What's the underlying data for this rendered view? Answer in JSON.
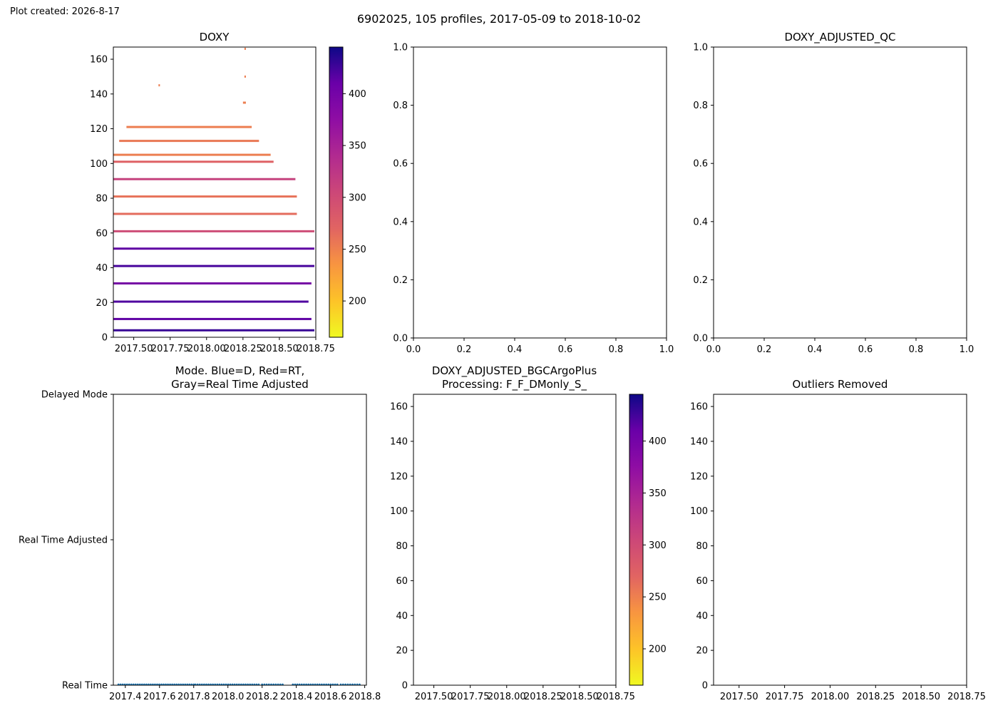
{
  "created_label": "Plot created: 2026-8-17",
  "suptitle": "6902025, 105 profiles, 2017-05-09 to 2018-10-02",
  "colors": {
    "axis": "#000000",
    "scatter": "#1f77b4",
    "colormap": "plasma"
  },
  "chart_data": [
    {
      "id": "doxy",
      "type": "heatmap",
      "title": "DOXY",
      "xlim": [
        2017.36,
        2018.75
      ],
      "ylim": [
        167,
        0
      ],
      "xticks": [
        2017.5,
        2017.75,
        2018.0,
        2018.25,
        2018.5,
        2018.75
      ],
      "xtick_labels": [
        "2017.50",
        "2017.75",
        "2018.00",
        "2018.25",
        "2018.50",
        "2018.75"
      ],
      "yticks": [
        0,
        20,
        40,
        60,
        80,
        100,
        120,
        140,
        160
      ],
      "ytick_labels": [
        "0",
        "20",
        "40",
        "60",
        "80",
        "100",
        "120",
        "140",
        "160"
      ],
      "colorbar": {
        "cmap": "plasma",
        "vmin": 165,
        "vmax": 445,
        "ticks": [
          200,
          250,
          300,
          350,
          400
        ],
        "tick_labels": [
          "200",
          "250",
          "300",
          "350",
          "400"
        ]
      },
      "cells": [
        {
          "x": 2017.36,
          "x2": 2018.74,
          "depth": 4,
          "value": 420
        },
        {
          "x": 2017.36,
          "x2": 2018.72,
          "depth": 10.5,
          "value": 395
        },
        {
          "x": 2017.36,
          "x2": 2018.7,
          "depth": 20.5,
          "value": 405
        },
        {
          "x": 2017.36,
          "x2": 2018.72,
          "depth": 31,
          "value": 380
        },
        {
          "x": 2017.36,
          "x2": 2018.74,
          "depth": 41,
          "value": 410
        },
        {
          "x": 2017.36,
          "x2": 2018.74,
          "depth": 51,
          "value": 395
        },
        {
          "x": 2017.36,
          "x2": 2018.74,
          "depth": 61,
          "value": 300
        },
        {
          "x": 2017.36,
          "x2": 2018.62,
          "depth": 71,
          "value": 270
        },
        {
          "x": 2017.36,
          "x2": 2018.62,
          "depth": 81,
          "value": 265
        },
        {
          "x": 2017.36,
          "x2": 2018.61,
          "depth": 91,
          "value": 310
        },
        {
          "x": 2017.36,
          "x2": 2018.46,
          "depth": 101,
          "value": 280
        },
        {
          "x": 2017.36,
          "x2": 2018.44,
          "depth": 105,
          "value": 255
        },
        {
          "x": 2017.4,
          "x2": 2018.36,
          "depth": 113,
          "value": 260
        },
        {
          "x": 2017.45,
          "x2": 2018.31,
          "depth": 121,
          "value": 255
        },
        {
          "x": 2018.25,
          "x2": 2018.27,
          "depth": 135,
          "value": 255
        },
        {
          "x": 2017.67,
          "x2": 2017.68,
          "depth": 145,
          "value": 255
        },
        {
          "x": 2018.26,
          "x2": 2018.27,
          "depth": 150,
          "value": 255
        },
        {
          "x": 2018.26,
          "x2": 2018.27,
          "depth": 166,
          "value": 255
        }
      ]
    },
    {
      "id": "doxy-adjusted",
      "type": "scatter",
      "title": "",
      "xlim": [
        0,
        1
      ],
      "ylim": [
        0,
        1
      ],
      "ticks": [
        0.0,
        0.2,
        0.4,
        0.6,
        0.8,
        1.0
      ],
      "tick_labels": [
        "0.0",
        "0.2",
        "0.4",
        "0.6",
        "0.8",
        "1.0"
      ]
    },
    {
      "id": "doxy-adjusted-qc",
      "type": "scatter",
      "title": "DOXY_ADJUSTED_QC",
      "xlim": [
        0,
        1
      ],
      "ylim": [
        0,
        1
      ],
      "ticks": [
        0.0,
        0.2,
        0.4,
        0.6,
        0.8,
        1.0
      ],
      "tick_labels": [
        "0.0",
        "0.2",
        "0.4",
        "0.6",
        "0.8",
        "1.0"
      ]
    },
    {
      "id": "mode",
      "type": "scatter",
      "title_lines": [
        "Mode. Blue=D, Red=RT,",
        "Gray=Real Time Adjusted"
      ],
      "xlim": [
        2017.33,
        2018.81
      ],
      "ylim": [
        0,
        2
      ],
      "xticks": [
        2017.4,
        2017.6,
        2017.8,
        2018.0,
        2018.2,
        2018.4,
        2018.6,
        2018.8
      ],
      "xtick_labels": [
        "2017.4",
        "2017.6",
        "2017.8",
        "2018.0",
        "2018.2",
        "2018.4",
        "2018.6",
        "2018.8"
      ],
      "yticks": [
        0,
        1,
        2
      ],
      "ytick_labels": [
        "Real Time",
        "Real Time Adjusted",
        "Delayed Mode"
      ],
      "series": [
        {
          "x_ranges": [
            [
              2017.36,
              2017.8
            ],
            [
              2017.81,
              2018.18
            ],
            [
              2018.2,
              2018.32
            ],
            [
              2018.38,
              2018.64
            ],
            [
              2018.66,
              2018.77
            ]
          ],
          "y": 0,
          "point_count": 105
        }
      ]
    },
    {
      "id": "bgc-argo-plus",
      "type": "heatmap",
      "title_lines": [
        "DOXY_ADJUSTED_BGCArgoPlus",
        "Processing: F_F_DMonly_S_"
      ],
      "xlim": [
        2017.36,
        2018.75
      ],
      "ylim": [
        167,
        0
      ],
      "xticks": [
        2017.5,
        2017.75,
        2018.0,
        2018.25,
        2018.5,
        2018.75
      ],
      "xtick_labels": [
        "2017.50",
        "2017.75",
        "2018.00",
        "2018.25",
        "2018.50",
        "2018.75"
      ],
      "yticks": [
        0,
        20,
        40,
        60,
        80,
        100,
        120,
        140,
        160
      ],
      "ytick_labels": [
        "0",
        "20",
        "40",
        "60",
        "80",
        "100",
        "120",
        "140",
        "160"
      ],
      "colorbar": {
        "cmap": "plasma",
        "vmin": 165,
        "vmax": 445,
        "ticks": [
          200,
          250,
          300,
          350,
          400
        ],
        "tick_labels": [
          "200",
          "250",
          "300",
          "350",
          "400"
        ]
      },
      "cells": []
    },
    {
      "id": "outliers",
      "type": "heatmap",
      "title": "Outliers Removed",
      "xlim": [
        2017.36,
        2018.75
      ],
      "ylim": [
        167,
        0
      ],
      "xticks": [
        2017.5,
        2017.75,
        2018.0,
        2018.25,
        2018.5,
        2018.75
      ],
      "xtick_labels": [
        "2017.50",
        "2017.75",
        "2018.00",
        "2018.25",
        "2018.50",
        "2018.75"
      ],
      "yticks": [
        0,
        20,
        40,
        60,
        80,
        100,
        120,
        140,
        160
      ],
      "ytick_labels": [
        "0",
        "20",
        "40",
        "60",
        "80",
        "100",
        "120",
        "140",
        "160"
      ],
      "cells": []
    }
  ]
}
